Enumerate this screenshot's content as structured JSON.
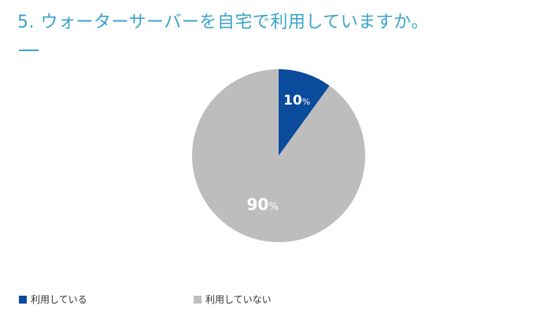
{
  "title": "5. ウォーターサーバーを自宅で利用していますか。",
  "chart_data": {
    "type": "pie",
    "title": "5. ウォーターサーバーを自宅で利用していますか。",
    "categories": [
      "利用している",
      "利用していない"
    ],
    "values": [
      10,
      90
    ],
    "labels": [
      "10",
      "90"
    ],
    "unit": "%",
    "colors": [
      "#0a4b9c",
      "#bdbdbd"
    ],
    "start_angle_deg": 0,
    "direction": "clockwise",
    "legend_position": "bottom"
  }
}
